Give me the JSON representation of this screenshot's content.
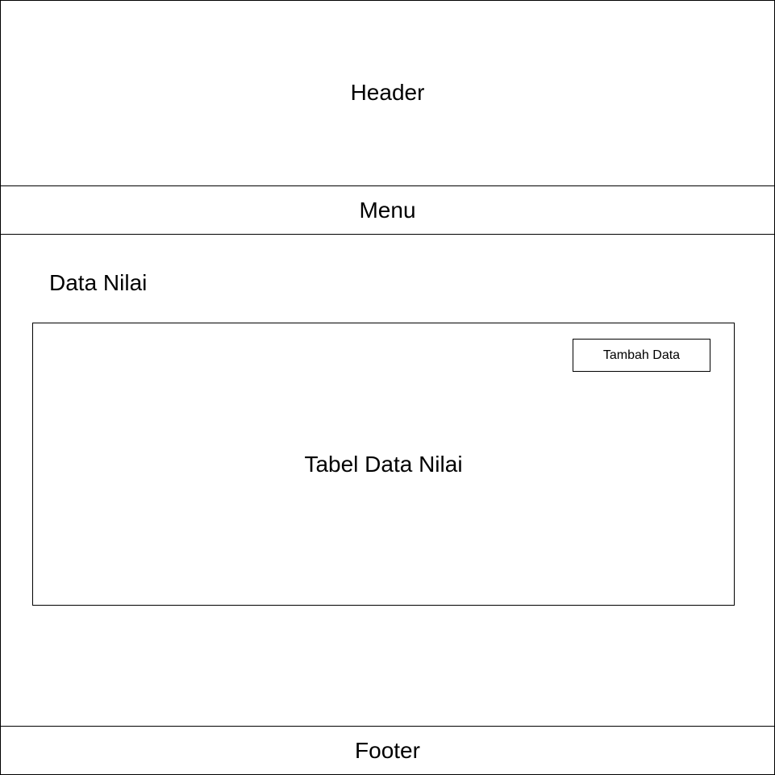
{
  "header": {
    "label": "Header"
  },
  "menu": {
    "label": "Menu"
  },
  "main": {
    "title": "Data Nilai",
    "table": {
      "label": "Tabel Data Nilai",
      "add_button_label": "Tambah Data"
    }
  },
  "footer": {
    "label": "Footer"
  }
}
